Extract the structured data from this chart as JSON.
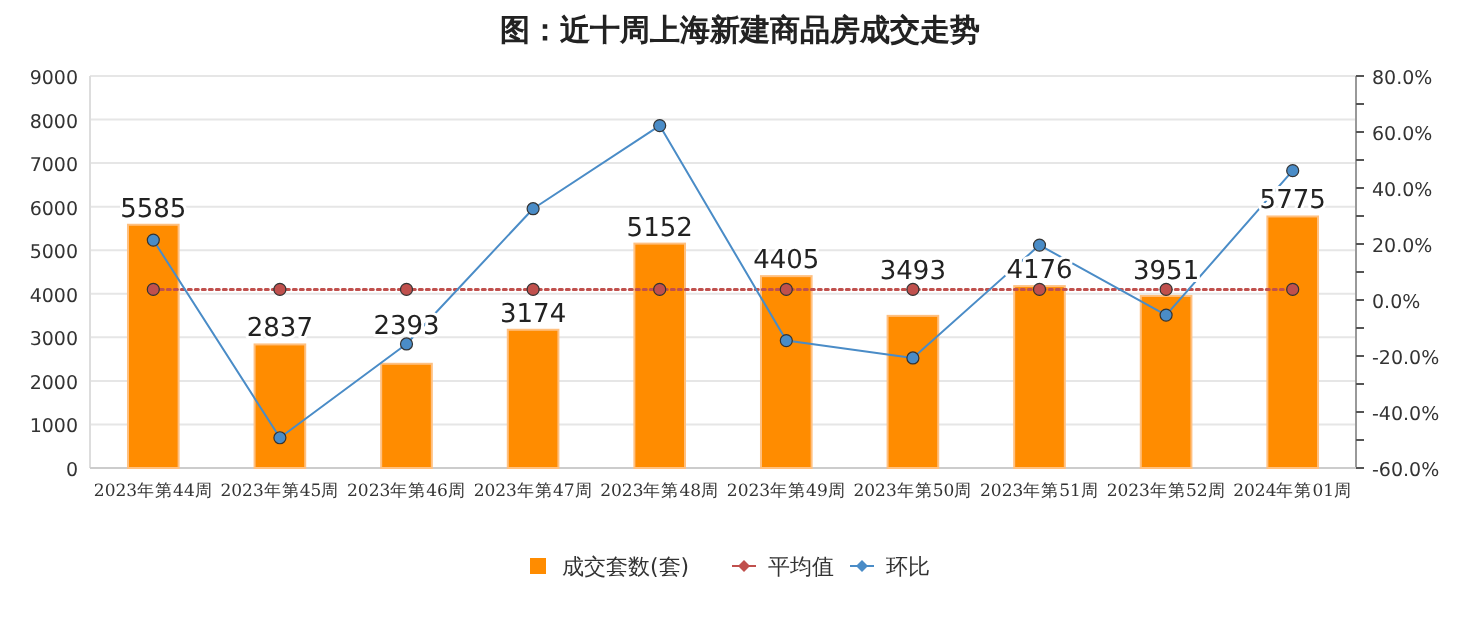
{
  "chart_data": {
    "type": "bar",
    "title": "图：近十周上海新建商品房成交走势",
    "categories": [
      "2023年第44周",
      "2023年第45周",
      "2023年第46周",
      "2023年第47周",
      "2023年第48周",
      "2023年第49周",
      "2023年第50周",
      "2023年第51周",
      "2023年第52周",
      "2024年第01周"
    ],
    "series": [
      {
        "name": "成交套数(套)",
        "color": "#ff8c00",
        "values": [
          5585,
          2837,
          2393,
          3174,
          5152,
          4405,
          3493,
          4176,
          3951,
          5775
        ],
        "value_labels": [
          "5585",
          "2837",
          "2393",
          "3174",
          "5152",
          "4405",
          "3493",
          "4176",
          "3951",
          "5775"
        ]
      },
      {
        "name": "平均值",
        "type": "line",
        "color": "#c0504d",
        "line_style": "dotted",
        "marker": "circle",
        "values": [
          4100,
          4100,
          4100,
          4100,
          4100,
          4100,
          4100,
          4100,
          4100,
          4100
        ]
      },
      {
        "name": "环比",
        "type": "line",
        "axis": "y2",
        "color": "#4a8cc7",
        "line_style": "solid",
        "marker": "circle",
        "values": [
          21.4,
          -49.2,
          -15.7,
          32.6,
          62.3,
          -14.5,
          -20.7,
          19.6,
          -5.4,
          46.2
        ]
      }
    ],
    "ylim": [
      0,
      9000
    ],
    "yticks": [
      0,
      1000,
      2000,
      3000,
      4000,
      5000,
      6000,
      7000,
      8000,
      9000
    ],
    "y2lim": [
      -60,
      80
    ],
    "y2ticks": [
      {
        "value": -60,
        "label": "-60.0%"
      },
      {
        "value": -50,
        "label": null
      },
      {
        "value": -40,
        "label": "-40.0%"
      },
      {
        "value": -30,
        "label": null
      },
      {
        "value": -20,
        "label": "-20.0%"
      },
      {
        "value": -10,
        "label": null
      },
      {
        "value": 0,
        "label": "0.0%"
      },
      {
        "value": 10,
        "label": null
      },
      {
        "value": 20,
        "label": "20.0%"
      },
      {
        "value": 30,
        "label": null
      },
      {
        "value": 40,
        "label": "40.0%"
      },
      {
        "value": 50,
        "label": null
      },
      {
        "value": 60,
        "label": "60.0%"
      },
      {
        "value": 70,
        "label": null
      },
      {
        "value": 80,
        "label": "80.0%"
      }
    ],
    "grid": "y",
    "legend": "bottom"
  }
}
